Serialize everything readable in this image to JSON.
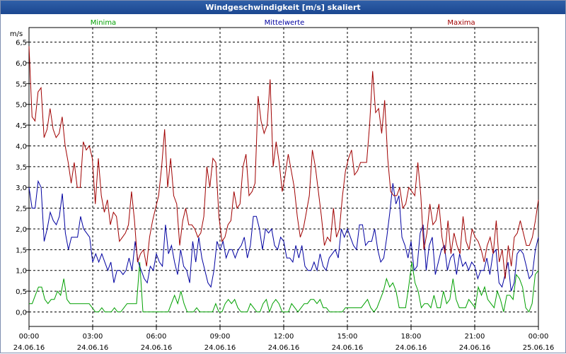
{
  "window": {
    "title": "Windgeschwindigkeit [m/s] skaliert"
  },
  "chart_data": {
    "type": "line",
    "ylabel": "m/s",
    "ylim": [
      -0.35,
      6.85
    ],
    "yticks": [
      "0,0",
      "0,5",
      "1,0",
      "1,5",
      "2,0",
      "2,5",
      "3,0",
      "3,5",
      "4,0",
      "4,5",
      "5,0",
      "5,5",
      "6,0",
      "6,5"
    ],
    "xlim_hours": [
      0,
      24
    ],
    "xticks": [
      {
        "time": "00:00",
        "date": "24.06.16"
      },
      {
        "time": "03:00",
        "date": "24.06.16"
      },
      {
        "time": "06:00",
        "date": "24.06.16"
      },
      {
        "time": "09:00",
        "date": "24.06.16"
      },
      {
        "time": "12:00",
        "date": "24.06.16"
      },
      {
        "time": "15:00",
        "date": "24.06.16"
      },
      {
        "time": "18:00",
        "date": "24.06.16"
      },
      {
        "time": "21:00",
        "date": "24.06.16"
      },
      {
        "time": "00:00",
        "date": "25.06.16"
      }
    ],
    "grid": true,
    "legend_position": "top",
    "series": [
      {
        "name": "Minima",
        "color": "#00a000",
        "values": [
          0.2,
          0.2,
          0.4,
          0.6,
          0.6,
          0.3,
          0.2,
          0.3,
          0.3,
          0.5,
          0.4,
          0.8,
          0.3,
          0.2,
          0.2,
          0.2,
          0.2,
          0.2,
          0.2,
          0.2,
          0.1,
          0.0,
          0.0,
          0.1,
          0.0,
          0.0,
          0.0,
          0.1,
          0.0,
          0.0,
          0.1,
          0.2,
          0.2,
          0.2,
          0.2,
          1.2,
          0.0,
          0.0,
          0.0,
          0.0,
          0.0,
          0.0,
          0.0,
          0.0,
          0.0,
          0.2,
          0.4,
          0.2,
          0.5,
          0.2,
          0.0,
          0.0,
          0.0,
          0.1,
          0.0,
          0.0,
          0.0,
          0.0,
          0.0,
          0.2,
          0.0,
          0.0,
          0.2,
          0.3,
          0.2,
          0.3,
          0.1,
          0.0,
          0.0,
          0.0,
          0.2,
          0.1,
          0.0,
          0.0,
          0.2,
          0.3,
          0.0,
          0.2,
          0.3,
          0.2,
          0.0,
          0.0,
          0.0,
          0.2,
          0.1,
          0.0,
          0.1,
          0.2,
          0.2,
          0.3,
          0.3,
          0.2,
          0.3,
          0.1,
          0.1,
          0.0,
          0.0,
          0.0,
          0.0,
          0.0,
          0.1,
          0.1,
          0.1,
          0.1,
          0.1,
          0.1,
          0.2,
          0.3,
          0.1,
          0.0,
          0.1,
          0.3,
          0.5,
          0.8,
          0.6,
          0.7,
          0.5,
          0.1,
          0.1,
          0.1,
          0.6,
          1.2,
          0.7,
          0.5,
          0.1,
          0.2,
          0.2,
          0.1,
          0.4,
          0.1,
          0.1,
          0.5,
          0.2,
          0.3,
          0.8,
          0.3,
          0.1,
          0.1,
          0.1,
          0.3,
          0.2,
          0.1,
          0.6,
          0.4,
          0.6,
          0.3,
          0.2,
          0.1,
          0.5,
          0.3,
          0.0,
          0.4,
          0.4,
          0.3,
          0.9,
          0.8,
          0.6,
          0.1,
          0.0,
          0.2,
          0.9,
          1.0
        ]
      },
      {
        "name": "Mittelwerte",
        "color": "#0000a0",
        "values": [
          3.0,
          2.5,
          2.5,
          3.15,
          3.0,
          1.7,
          2.0,
          2.4,
          2.2,
          2.1,
          2.3,
          2.85,
          1.9,
          1.5,
          1.8,
          1.8,
          1.8,
          2.3,
          2.0,
          1.9,
          1.8,
          1.2,
          1.4,
          1.2,
          1.4,
          1.2,
          1.0,
          1.2,
          0.7,
          1.0,
          1.0,
          0.9,
          1.0,
          1.3,
          1.0,
          1.7,
          1.2,
          1.0,
          0.8,
          0.7,
          1.1,
          1.0,
          1.4,
          1.2,
          1.1,
          2.1,
          1.4,
          1.6,
          1.2,
          0.9,
          1.5,
          1.1,
          1.0,
          0.7,
          1.7,
          1.2,
          1.8,
          1.3,
          1.0,
          0.7,
          0.6,
          1.0,
          1.7,
          1.5,
          1.7,
          1.3,
          1.5,
          1.5,
          1.3,
          1.5,
          1.6,
          1.8,
          1.3,
          1.6,
          2.3,
          2.3,
          2.0,
          1.5,
          2.0,
          1.9,
          2.0,
          1.6,
          1.5,
          1.8,
          1.7,
          1.3,
          1.3,
          1.2,
          1.6,
          1.3,
          1.6,
          1.1,
          1.0,
          1.0,
          1.2,
          1.0,
          1.4,
          1.1,
          1.0,
          1.3,
          1.4,
          1.5,
          1.3,
          2.0,
          1.8,
          2.0,
          1.8,
          1.6,
          1.5,
          2.1,
          2.1,
          1.6,
          1.7,
          1.7,
          2.0,
          1.5,
          1.2,
          1.3,
          1.8,
          2.4,
          3.1,
          2.6,
          2.8,
          1.8,
          1.6,
          1.3,
          1.7,
          1.0,
          1.1,
          1.9,
          2.1,
          1.0,
          1.6,
          1.8,
          0.9,
          1.2,
          1.5,
          1.6,
          1.0,
          1.3,
          1.4,
          0.9,
          1.4,
          1.1,
          1.2,
          1.0,
          1.2,
          1.1,
          0.8,
          1.0,
          1.0,
          1.3,
          0.9,
          1.4,
          1.5,
          0.7,
          0.6,
          0.9,
          1.2,
          0.5,
          0.7,
          1.4,
          1.5,
          1.4,
          1.1,
          0.8,
          0.9,
          1.5,
          1.8
        ]
      },
      {
        "name": "Maxima",
        "color": "#a00000",
        "values": [
          6.4,
          4.7,
          4.6,
          5.3,
          5.4,
          4.2,
          4.4,
          4.9,
          4.4,
          4.2,
          4.3,
          4.7,
          4.0,
          3.6,
          3.1,
          3.6,
          3.0,
          3.0,
          4.1,
          3.9,
          4.0,
          3.7,
          2.6,
          3.7,
          2.8,
          2.4,
          2.7,
          2.1,
          2.4,
          2.3,
          1.7,
          1.8,
          1.9,
          2.1,
          2.9,
          2.2,
          1.2,
          1.4,
          1.5,
          1.1,
          1.8,
          2.2,
          2.5,
          2.8,
          3.5,
          4.4,
          3.0,
          3.7,
          2.8,
          2.6,
          1.6,
          2.2,
          2.5,
          2.1,
          2.1,
          2.0,
          1.8,
          1.9,
          2.3,
          3.5,
          3.0,
          3.7,
          3.6,
          2.3,
          1.7,
          1.8,
          2.1,
          2.2,
          2.9,
          2.5,
          2.6,
          3.5,
          3.8,
          2.8,
          2.9,
          3.1,
          5.2,
          4.6,
          4.3,
          4.5,
          5.6,
          3.5,
          4.1,
          3.6,
          2.9,
          3.3,
          3.8,
          3.4,
          3.0,
          2.3,
          1.8,
          2.0,
          2.4,
          2.8,
          3.9,
          3.5,
          2.9,
          2.3,
          1.6,
          1.8,
          1.7,
          2.5,
          1.8,
          2.0,
          2.8,
          3.4,
          3.7,
          3.9,
          3.3,
          3.4,
          3.6,
          3.6,
          3.6,
          4.5,
          5.8,
          4.8,
          4.9,
          4.3,
          5.1,
          3.7,
          2.9,
          2.8,
          2.8,
          3.0,
          2.5,
          2.6,
          3.0,
          2.9,
          2.8,
          3.6,
          2.8,
          1.5,
          1.9,
          2.6,
          2.1,
          2.2,
          2.6,
          1.8,
          1.4,
          2.2,
          1.4,
          1.9,
          1.6,
          1.4,
          2.3,
          1.7,
          1.5,
          2.0,
          1.8,
          1.7,
          1.5,
          1.2,
          1.6,
          1.8,
          1.4,
          2.2,
          1.2,
          1.5,
          0.8,
          1.6,
          1.1,
          1.8,
          1.9,
          2.2,
          1.9,
          1.6,
          1.6,
          1.8,
          2.2,
          2.7
        ]
      }
    ]
  }
}
